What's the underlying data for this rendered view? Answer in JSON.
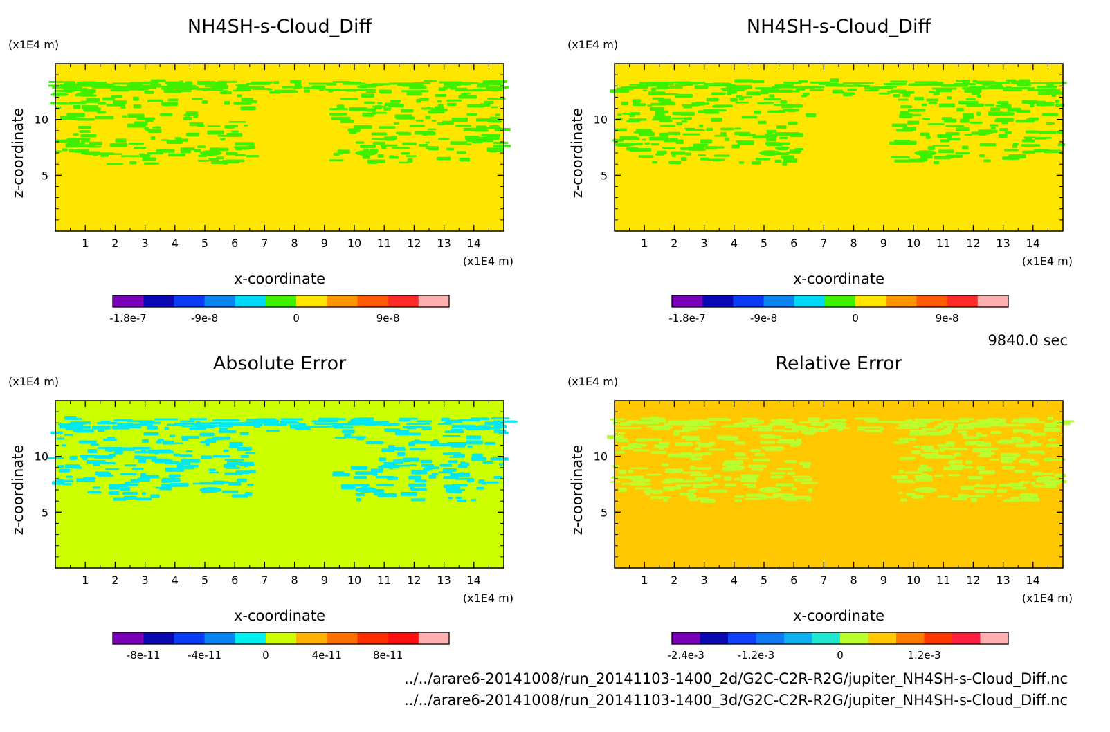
{
  "chart_data": [
    {
      "type": "heatmap",
      "title": "NH4SH-s-Cloud_Diff",
      "xlabel": "x-coordinate",
      "ylabel": "z-coordinate",
      "x_unit": "(x1E4 m)",
      "y_unit": "(x1E4 m)",
      "xlim": [
        0,
        15
      ],
      "ylim": [
        0,
        15
      ],
      "x_ticks": [
        "1",
        "2",
        "3",
        "4",
        "5",
        "6",
        "7",
        "8",
        "9",
        "10",
        "11",
        "12",
        "13",
        "14"
      ],
      "y_ticks": [
        "5",
        "10"
      ],
      "background_color": "#ffe600",
      "pattern_color": "#3ff000",
      "cloud_layer_z": [
        6,
        13.5
      ],
      "colorbar": {
        "colors": [
          "#7a00b8",
          "#0a08b0",
          "#0a3cf5",
          "#0a84f0",
          "#00d8f8",
          "#3ff000",
          "#ffe600",
          "#ff9600",
          "#ff5a00",
          "#ff2a2a",
          "#ffb0b0"
        ],
        "labels": [
          "-1.8e-7",
          "-9e-8",
          "0",
          "9e-8"
        ],
        "label_bins": [
          0.5,
          3,
          6,
          9
        ]
      }
    },
    {
      "type": "heatmap",
      "title": "NH4SH-s-Cloud_Diff",
      "xlabel": "x-coordinate",
      "ylabel": "z-coordinate",
      "x_unit": "(x1E4 m)",
      "y_unit": "(x1E4 m)",
      "xlim": [
        0,
        15
      ],
      "ylim": [
        0,
        15
      ],
      "x_ticks": [
        "1",
        "2",
        "3",
        "4",
        "5",
        "6",
        "7",
        "8",
        "9",
        "10",
        "11",
        "12",
        "13",
        "14"
      ],
      "y_ticks": [
        "5",
        "10"
      ],
      "background_color": "#ffe600",
      "pattern_color": "#3ff000",
      "cloud_layer_z": [
        6,
        13.5
      ],
      "colorbar": {
        "colors": [
          "#7a00b8",
          "#0a08b0",
          "#0a3cf5",
          "#0a84f0",
          "#00d8f8",
          "#3ff000",
          "#ffe600",
          "#ff9600",
          "#ff5a00",
          "#ff2a2a",
          "#ffb0b0"
        ],
        "labels": [
          "-1.8e-7",
          "-9e-8",
          "0",
          "9e-8"
        ],
        "label_bins": [
          0.5,
          3,
          6,
          9
        ]
      }
    },
    {
      "type": "heatmap",
      "title": "Absolute Error",
      "xlabel": "x-coordinate",
      "ylabel": "z-coordinate",
      "x_unit": "(x1E4 m)",
      "y_unit": "(x1E4 m)",
      "xlim": [
        0,
        15
      ],
      "ylim": [
        0,
        15
      ],
      "x_ticks": [
        "1",
        "2",
        "3",
        "4",
        "5",
        "6",
        "7",
        "8",
        "9",
        "10",
        "11",
        "12",
        "13",
        "14"
      ],
      "y_ticks": [
        "5",
        "10"
      ],
      "background_color": "#ccff00",
      "pattern_color": "#00e8f0",
      "cloud_layer_z": [
        6,
        13.5
      ],
      "colorbar": {
        "colors": [
          "#7a00b8",
          "#0a08b0",
          "#0a3cf5",
          "#0a84f0",
          "#00f0f0",
          "#ccff00",
          "#ffb000",
          "#ff7000",
          "#ff3000",
          "#ff1010",
          "#ffb0b0"
        ],
        "labels": [
          "-8e-11",
          "-4e-11",
          "0",
          "4e-11",
          "8e-11"
        ],
        "label_bins": [
          1,
          3,
          5,
          7,
          9
        ]
      }
    },
    {
      "type": "heatmap",
      "title": "Relative Error",
      "xlabel": "x-coordinate",
      "ylabel": "z-coordinate",
      "x_unit": "(x1E4 m)",
      "y_unit": "(x1E4 m)",
      "xlim": [
        0,
        15
      ],
      "ylim": [
        0,
        15
      ],
      "x_ticks": [
        "1",
        "2",
        "3",
        "4",
        "5",
        "6",
        "7",
        "8",
        "9",
        "10",
        "11",
        "12",
        "13",
        "14"
      ],
      "y_ticks": [
        "5",
        "10"
      ],
      "background_color": "#ffc800",
      "pattern_color": "#b8ff30",
      "cloud_layer_z": [
        6,
        13.5
      ],
      "colorbar": {
        "colors": [
          "#7a00b8",
          "#0a08b0",
          "#1040f8",
          "#1078f0",
          "#10b0f0",
          "#20e8d0",
          "#b8ff30",
          "#ffc800",
          "#ff7a00",
          "#ff3a00",
          "#ff2040",
          "#ffb0b0"
        ],
        "labels": [
          "-2.4e-3",
          "-1.2e-3",
          "0",
          "1.2e-3"
        ],
        "label_bins": [
          0.5,
          3,
          6,
          9
        ]
      }
    }
  ],
  "time_label": "9840.0 sec",
  "footer": {
    "line1": "../../arare6-20141008/run_20141103-1400_2d/G2C-C2R-R2G/jupiter_NH4SH-s-Cloud_Diff.nc",
    "line2": "../../arare6-20141008/run_20141103-1400_3d/G2C-C2R-R2G/jupiter_NH4SH-s-Cloud_Diff.nc"
  }
}
